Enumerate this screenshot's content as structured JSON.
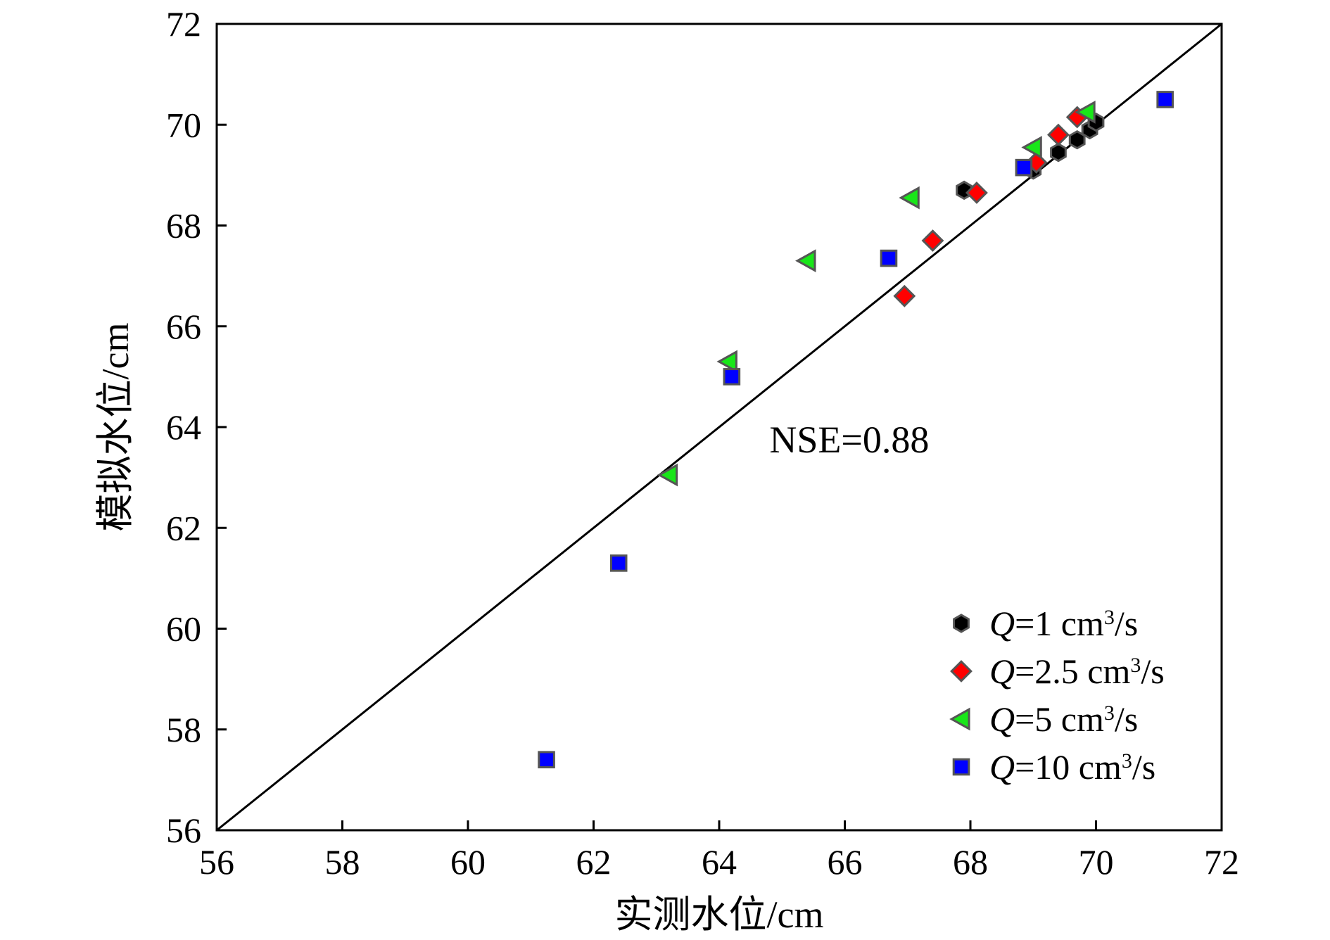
{
  "chart_data": {
    "type": "scatter",
    "xlabel": "实测水位/cm",
    "ylabel": "模拟水位/cm",
    "xlim": [
      56,
      72
    ],
    "ylim": [
      56,
      72
    ],
    "xticks": [
      "56",
      "58",
      "60",
      "62",
      "64",
      "66",
      "68",
      "70",
      "72"
    ],
    "yticks": [
      "56",
      "58",
      "60",
      "62",
      "64",
      "66",
      "68",
      "70",
      "72"
    ],
    "reference_line": {
      "from": [
        56,
        56
      ],
      "to": [
        72,
        72
      ]
    },
    "annotation": {
      "text": "NSE=0.88",
      "x": 64.8,
      "y": 63.5
    },
    "legend_position": "bottom-right",
    "series": [
      {
        "name": "Q=1 cm³/s",
        "legend_prefix": "Q",
        "legend_middle": "=1 cm",
        "legend_sup": "3",
        "legend_suffix": "/s",
        "marker": "hexagon",
        "color": "#000000",
        "points": [
          [
            67.9,
            68.7
          ],
          [
            69.0,
            69.1
          ],
          [
            69.4,
            69.45
          ],
          [
            69.7,
            69.7
          ],
          [
            69.9,
            69.9
          ],
          [
            70.0,
            70.05
          ]
        ]
      },
      {
        "name": "Q=2.5 cm³/s",
        "legend_prefix": "Q",
        "legend_middle": "=2.5 cm",
        "legend_sup": "3",
        "legend_suffix": "/s",
        "marker": "diamond",
        "color": "#ff0000",
        "points": [
          [
            66.95,
            66.6
          ],
          [
            67.4,
            67.7
          ],
          [
            68.1,
            68.65
          ],
          [
            69.05,
            69.25
          ],
          [
            69.4,
            69.8
          ],
          [
            69.7,
            70.15
          ]
        ]
      },
      {
        "name": "Q=5 cm³/s",
        "legend_prefix": "Q",
        "legend_middle": "=5 cm",
        "legend_sup": "3",
        "legend_suffix": "/s",
        "marker": "triangle-left",
        "color": "#19e619",
        "points": [
          [
            63.2,
            63.05
          ],
          [
            64.15,
            65.3
          ],
          [
            65.4,
            67.3
          ],
          [
            67.05,
            68.55
          ],
          [
            69.0,
            69.55
          ],
          [
            69.85,
            70.25
          ]
        ]
      },
      {
        "name": "Q=10 cm³/s",
        "legend_prefix": "Q",
        "legend_middle": "=10 cm",
        "legend_sup": "3",
        "legend_suffix": "/s",
        "marker": "square",
        "color": "#0000ff",
        "points": [
          [
            61.25,
            57.4
          ],
          [
            62.4,
            61.3
          ],
          [
            64.2,
            65.0
          ],
          [
            66.7,
            67.35
          ],
          [
            68.85,
            69.15
          ],
          [
            71.1,
            70.5
          ]
        ]
      }
    ]
  }
}
